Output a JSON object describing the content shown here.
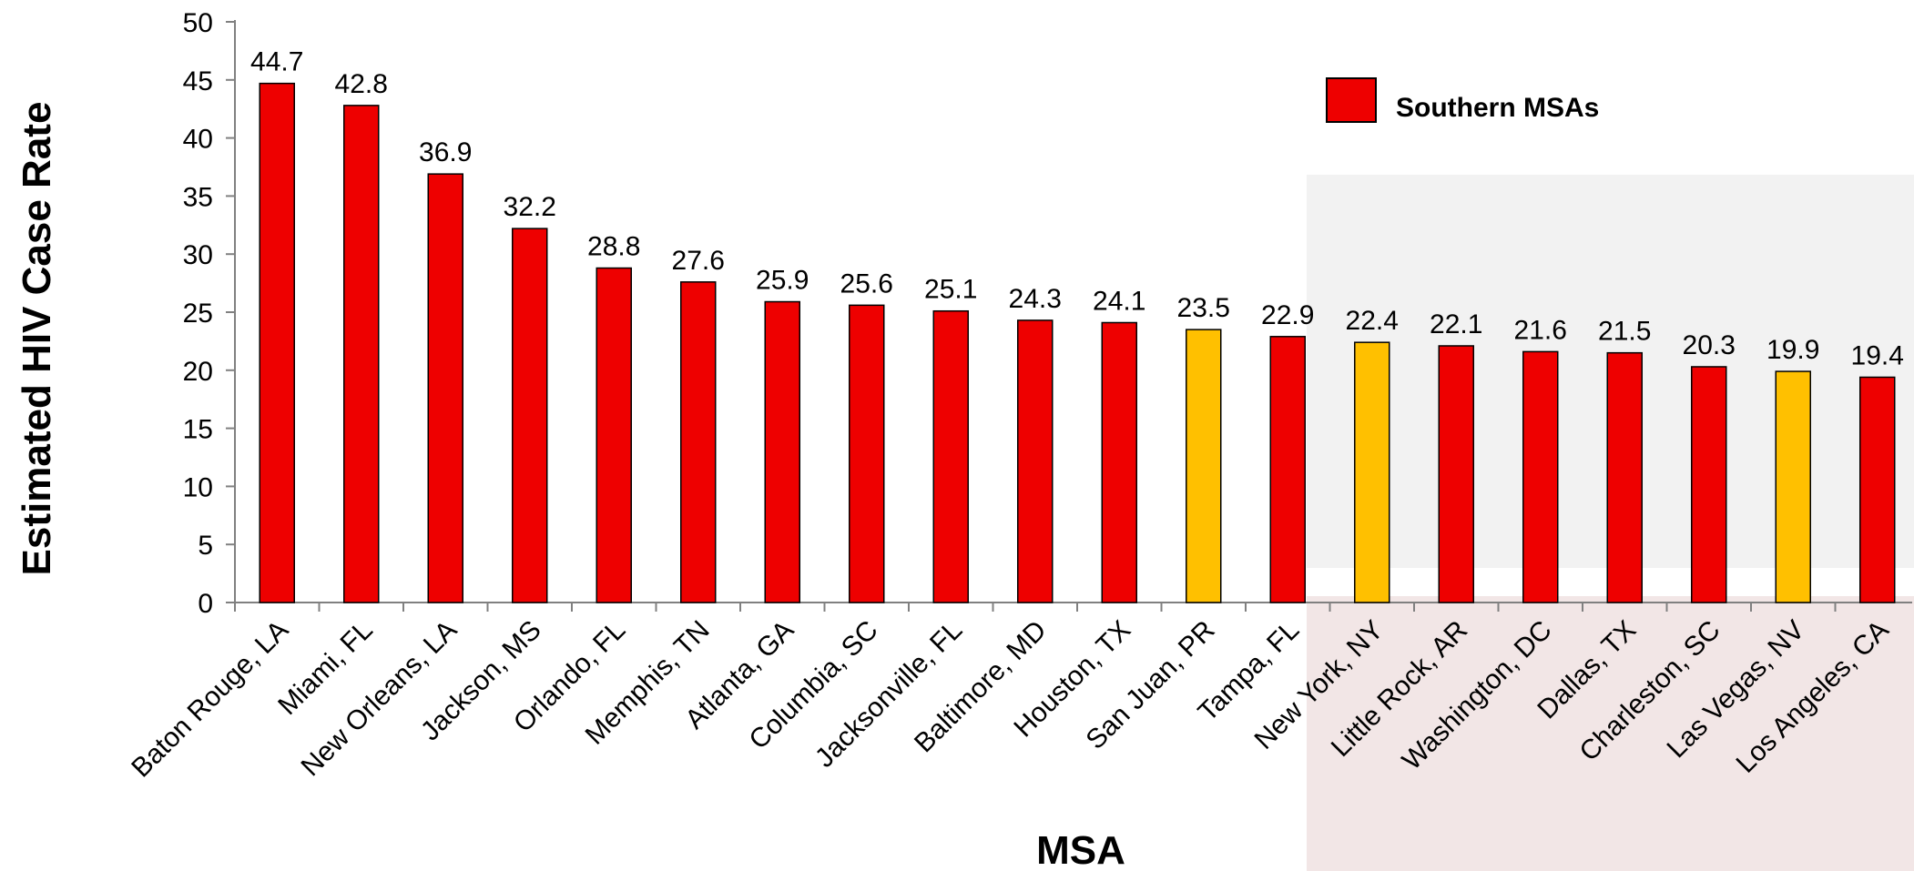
{
  "chart_data": {
    "type": "bar",
    "title": "",
    "xlabel": "MSA",
    "ylabel": "Estimated HIV Case Rate",
    "ylim": [
      0,
      50
    ],
    "yticks": [
      0,
      5,
      10,
      15,
      20,
      25,
      30,
      35,
      40,
      45,
      50
    ],
    "grid": false,
    "categories": [
      "Baton Rouge, LA",
      "Miami, FL",
      "New Orleans, LA",
      "Jackson, MS",
      "Orlando, FL",
      "Memphis, TN",
      "Atlanta, GA",
      "Columbia, SC",
      "Jacksonville, FL",
      "Baltimore, MD",
      "Houston, TX",
      "San Juan, PR",
      "Tampa, FL",
      "New York, NY",
      "Little Rock, AR",
      "Washington, DC",
      "Dallas, TX",
      "Charleston, SC",
      "Las Vegas, NV",
      "Los Angeles, CA"
    ],
    "values": [
      44.7,
      42.8,
      36.9,
      32.2,
      28.8,
      27.6,
      25.9,
      25.6,
      25.1,
      24.3,
      24.1,
      23.5,
      22.9,
      22.4,
      22.1,
      21.6,
      21.5,
      20.3,
      19.9,
      19.4
    ],
    "value_labels": [
      "44.7",
      "42.8",
      "36.9",
      "32.2",
      "28.8",
      "27.6",
      "25.9",
      "25.6",
      "25.1",
      "24.3",
      "24.1",
      "23.5",
      "22.9",
      "22.4",
      "22.1",
      "21.6",
      "21.5",
      "20.3",
      "19.9",
      "19.4"
    ],
    "southern": [
      true,
      true,
      true,
      true,
      true,
      true,
      true,
      true,
      true,
      true,
      true,
      false,
      true,
      false,
      true,
      true,
      true,
      true,
      false,
      true
    ],
    "colors": {
      "southern": "#ee0000",
      "other": "#ffc000",
      "outline": "#000000",
      "panel_gray": "#f2f2f2",
      "panel_pink": "#f2e6e6"
    },
    "legend": {
      "label": "Southern MSAs",
      "placement": "top-right"
    }
  }
}
